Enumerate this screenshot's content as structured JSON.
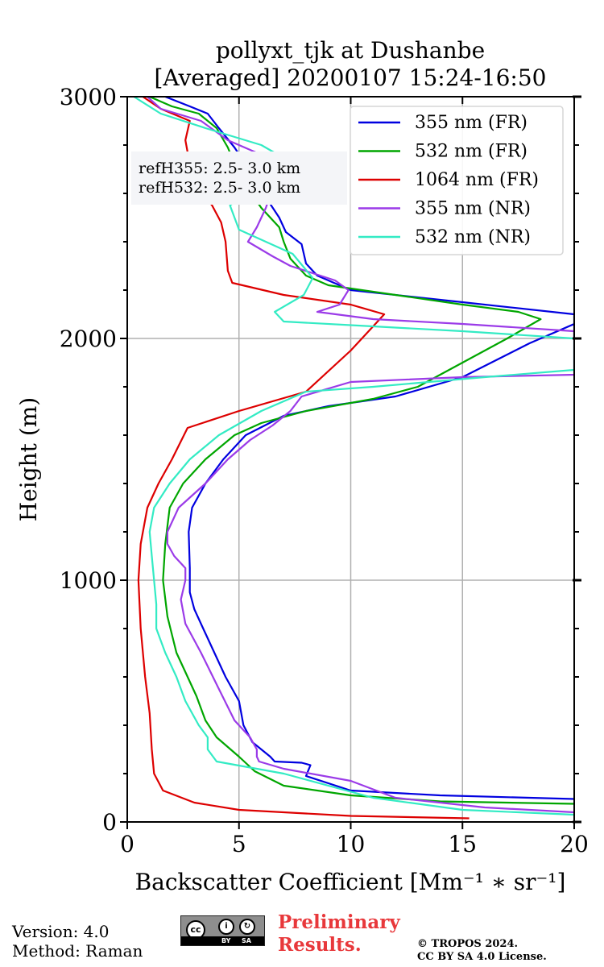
{
  "chart_data": {
    "type": "line",
    "title": [
      "pollyxt_tjk at Dushanbe",
      "[Averaged] 20200107 15:24-16:50"
    ],
    "xlabel": "Backscatter Coefficient [Mm⁻¹ ∗ sr⁻¹]",
    "ylabel": "Height (m)",
    "xlim": [
      0,
      20
    ],
    "ylim": [
      0,
      3000
    ],
    "xticks": [
      0,
      5,
      10,
      15,
      20
    ],
    "yticks": [
      0,
      1000,
      2000,
      3000
    ],
    "grid": true,
    "legend_position": "top-right",
    "annotation": [
      "refH355:  2.5- 3.0 km",
      "refH532:  2.5- 3.0 km"
    ],
    "series": [
      {
        "name": "355 nm (FR)",
        "color": "#0000e0",
        "points": [
          [
            20,
            95
          ],
          [
            14,
            110
          ],
          [
            10,
            130
          ],
          [
            8,
            190
          ],
          [
            8.2,
            235
          ],
          [
            7.8,
            245
          ],
          [
            6.6,
            250
          ],
          [
            6.4,
            270
          ],
          [
            5.6,
            330
          ],
          [
            5.2,
            400
          ],
          [
            5.0,
            500
          ],
          [
            4.4,
            600
          ],
          [
            3.9,
            700
          ],
          [
            3.4,
            800
          ],
          [
            3.0,
            880
          ],
          [
            2.8,
            950
          ],
          [
            2.8,
            1050
          ],
          [
            2.75,
            1200
          ],
          [
            2.9,
            1300
          ],
          [
            3.5,
            1400
          ],
          [
            4.3,
            1500
          ],
          [
            5.3,
            1600
          ],
          [
            7,
            1680
          ],
          [
            9,
            1720
          ],
          [
            12,
            1760
          ],
          [
            15,
            1840
          ],
          [
            18,
            1980
          ],
          [
            20,
            2060
          ],
          [
            20,
            2000
          ],
          [
            20,
            2100
          ],
          [
            15,
            2150
          ],
          [
            10,
            2200
          ],
          [
            8.5,
            2260
          ],
          [
            8,
            2310
          ],
          [
            7.8,
            2390
          ],
          [
            7.1,
            2440
          ],
          [
            6.8,
            2500
          ],
          [
            6.3,
            2570
          ],
          [
            5.7,
            2650
          ],
          [
            5.3,
            2720
          ],
          [
            4.8,
            2790
          ],
          [
            4.1,
            2870
          ],
          [
            3.6,
            2930
          ],
          [
            2.8,
            2960
          ],
          [
            1.7,
            3000
          ]
        ]
      },
      {
        "name": "532 nm (FR)",
        "color": "#00a600",
        "points": [
          [
            20,
            75
          ],
          [
            14,
            85
          ],
          [
            10,
            110
          ],
          [
            7,
            150
          ],
          [
            5.7,
            210
          ],
          [
            5,
            270
          ],
          [
            4,
            350
          ],
          [
            3.5,
            420
          ],
          [
            3.1,
            520
          ],
          [
            2.6,
            620
          ],
          [
            2.2,
            700
          ],
          [
            1.8,
            850
          ],
          [
            1.6,
            1000
          ],
          [
            1.7,
            1150
          ],
          [
            1.9,
            1300
          ],
          [
            2.5,
            1400
          ],
          [
            3.5,
            1500
          ],
          [
            4.8,
            1600
          ],
          [
            6,
            1650
          ],
          [
            8,
            1700
          ],
          [
            11,
            1750
          ],
          [
            13,
            1800
          ],
          [
            15,
            1900
          ],
          [
            17,
            2000
          ],
          [
            18.5,
            2080
          ],
          [
            17.5,
            2110
          ],
          [
            15,
            2140
          ],
          [
            12,
            2180
          ],
          [
            9,
            2220
          ],
          [
            8,
            2260
          ],
          [
            7.3,
            2330
          ],
          [
            7,
            2400
          ],
          [
            6.8,
            2460
          ],
          [
            6,
            2540
          ],
          [
            5.4,
            2620
          ],
          [
            4.9,
            2700
          ],
          [
            4.5,
            2790
          ],
          [
            4,
            2870
          ],
          [
            3.2,
            2930
          ],
          [
            2,
            2960
          ],
          [
            1.0,
            3000
          ]
        ]
      },
      {
        "name": "1064 nm (FR)",
        "color": "#dd0000",
        "points": [
          [
            15.3,
            15
          ],
          [
            10,
            25
          ],
          [
            5,
            50
          ],
          [
            3,
            80
          ],
          [
            1.6,
            130
          ],
          [
            1.2,
            200
          ],
          [
            1.1,
            300
          ],
          [
            1.0,
            450
          ],
          [
            0.8,
            600
          ],
          [
            0.6,
            800
          ],
          [
            0.5,
            1000
          ],
          [
            0.6,
            1150
          ],
          [
            0.9,
            1300
          ],
          [
            1.4,
            1400
          ],
          [
            2,
            1500
          ],
          [
            2.7,
            1630
          ],
          [
            5,
            1700
          ],
          [
            8,
            1780
          ],
          [
            10,
            1950
          ],
          [
            11,
            2050
          ],
          [
            11.5,
            2100
          ],
          [
            10,
            2140
          ],
          [
            7,
            2180
          ],
          [
            4.7,
            2230
          ],
          [
            4.5,
            2280
          ],
          [
            4.4,
            2400
          ],
          [
            4.2,
            2480
          ],
          [
            3.8,
            2550
          ],
          [
            3.2,
            2620
          ],
          [
            2.8,
            2720
          ],
          [
            2.6,
            2820
          ],
          [
            2.8,
            2900
          ],
          [
            1.5,
            2950
          ],
          [
            0.7,
            3000
          ]
        ]
      },
      {
        "name": "355 nm (NR)",
        "color": "#9b3be8",
        "points": [
          [
            20,
            40
          ],
          [
            16,
            60
          ],
          [
            12,
            100
          ],
          [
            10,
            170
          ],
          [
            7,
            220
          ],
          [
            5.9,
            250
          ],
          [
            5.8,
            270
          ],
          [
            5.8,
            300
          ],
          [
            5.5,
            350
          ],
          [
            4.8,
            420
          ],
          [
            4.1,
            550
          ],
          [
            3.3,
            700
          ],
          [
            2.6,
            820
          ],
          [
            2.4,
            920
          ],
          [
            2.6,
            1000
          ],
          [
            2.6,
            1050
          ],
          [
            2.1,
            1100
          ],
          [
            1.8,
            1150
          ],
          [
            1.8,
            1200
          ],
          [
            2.3,
            1300
          ],
          [
            3.5,
            1400
          ],
          [
            4.5,
            1500
          ],
          [
            5.5,
            1580
          ],
          [
            6.5,
            1640
          ],
          [
            7.3,
            1700
          ],
          [
            7.8,
            1760
          ],
          [
            10,
            1820
          ],
          [
            15,
            1840
          ],
          [
            20,
            1850
          ],
          [
            20,
            2030
          ],
          [
            15,
            2060
          ],
          [
            11,
            2080
          ],
          [
            8.5,
            2110
          ],
          [
            9.5,
            2140
          ],
          [
            9.9,
            2200
          ],
          [
            9.3,
            2240
          ],
          [
            7.3,
            2300
          ],
          [
            6.5,
            2340
          ],
          [
            5.4,
            2400
          ],
          [
            5.8,
            2460
          ],
          [
            6.2,
            2540
          ],
          [
            6.5,
            2620
          ],
          [
            6.8,
            2700
          ],
          [
            6.0,
            2760
          ],
          [
            4.5,
            2820
          ],
          [
            3.3,
            2900
          ],
          [
            1.5,
            2950
          ],
          [
            0.9,
            3000
          ]
        ]
      },
      {
        "name": "532 nm (NR)",
        "color": "#33ebc4",
        "points": [
          [
            20,
            30
          ],
          [
            15,
            50
          ],
          [
            11,
            100
          ],
          [
            7,
            200
          ],
          [
            4,
            250
          ],
          [
            3.6,
            300
          ],
          [
            3.6,
            350
          ],
          [
            3.2,
            400
          ],
          [
            2.6,
            500
          ],
          [
            2.2,
            600
          ],
          [
            1.7,
            700
          ],
          [
            1.3,
            800
          ],
          [
            1.3,
            900
          ],
          [
            1.2,
            1000
          ],
          [
            1.1,
            1100
          ],
          [
            1.0,
            1200
          ],
          [
            1.2,
            1300
          ],
          [
            1.9,
            1400
          ],
          [
            2.8,
            1500
          ],
          [
            4.1,
            1600
          ],
          [
            6,
            1700
          ],
          [
            8,
            1780
          ],
          [
            11,
            1800
          ],
          [
            16,
            1840
          ],
          [
            20,
            1870
          ],
          [
            20,
            2000
          ],
          [
            15,
            2030
          ],
          [
            11,
            2050
          ],
          [
            7,
            2070
          ],
          [
            6.6,
            2110
          ],
          [
            7.9,
            2180
          ],
          [
            8.3,
            2250
          ],
          [
            7.4,
            2350
          ],
          [
            5,
            2450
          ],
          [
            4.6,
            2550
          ],
          [
            5,
            2580
          ],
          [
            6.4,
            2650
          ],
          [
            7.5,
            2720
          ],
          [
            6,
            2800
          ],
          [
            3.5,
            2870
          ],
          [
            1.5,
            2930
          ],
          [
            0.3,
            3000
          ]
        ]
      }
    ]
  },
  "footer": {
    "version": "Version: 4.0",
    "method": "Method: Raman",
    "license_badge": {
      "cc": "cc",
      "by": "BY",
      "sa": "SA",
      "by_icon": "i",
      "sa_icon": "↻"
    },
    "preliminary": [
      "Preliminary",
      "Results."
    ],
    "copyright": [
      "© TROPOS 2024.",
      "CC BY SA 4.0 License."
    ]
  }
}
